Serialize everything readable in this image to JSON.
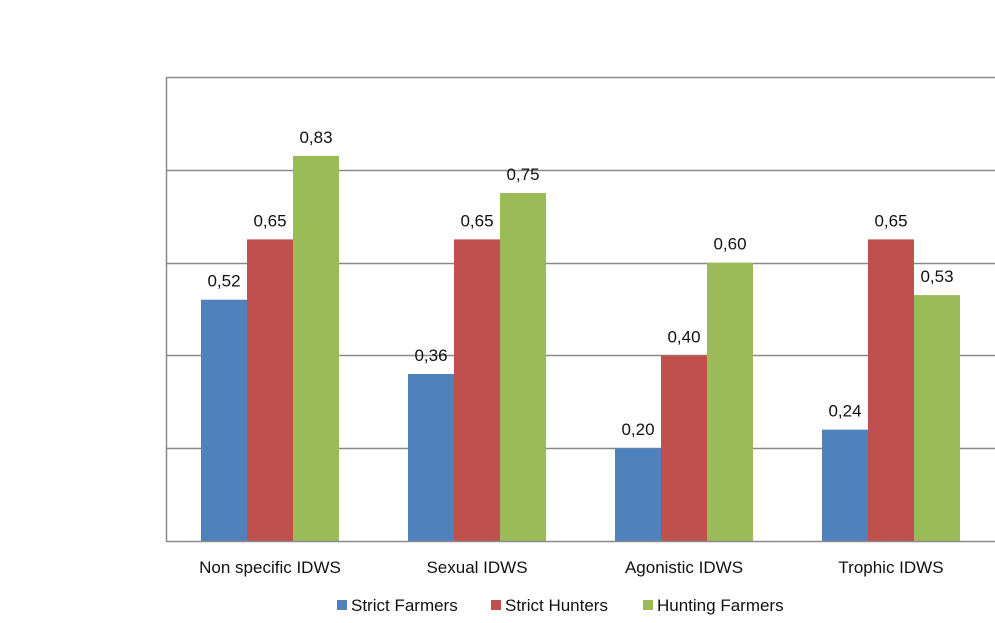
{
  "chart_data": {
    "type": "bar",
    "title": "",
    "xlabel": "",
    "ylabel": "",
    "ylim": [
      0,
      1
    ],
    "gridlines": [
      0.2,
      0.4,
      0.6,
      0.8,
      1.0
    ],
    "categories": [
      "Non specific IDWS",
      "Sexual IDWS",
      "Agonistic IDWS",
      "Trophic IDWS"
    ],
    "series": [
      {
        "name": "Strict Farmers",
        "color": "#4F81BD",
        "values": [
          0.52,
          0.36,
          0.2,
          0.24
        ],
        "labels": [
          "0,52",
          "0,36",
          "0,20",
          "0,24"
        ]
      },
      {
        "name": "Strict Hunters",
        "color": "#C0504D",
        "values": [
          0.65,
          0.65,
          0.4,
          0.65
        ],
        "labels": [
          "0,65",
          "0,65",
          "0,40",
          "0,65"
        ]
      },
      {
        "name": "Hunting Farmers",
        "color": "#9BBB59",
        "values": [
          0.83,
          0.75,
          0.6,
          0.53
        ],
        "labels": [
          "0,83",
          "0,75",
          "0,60",
          "0,53"
        ]
      }
    ],
    "legend_position": "bottom"
  }
}
